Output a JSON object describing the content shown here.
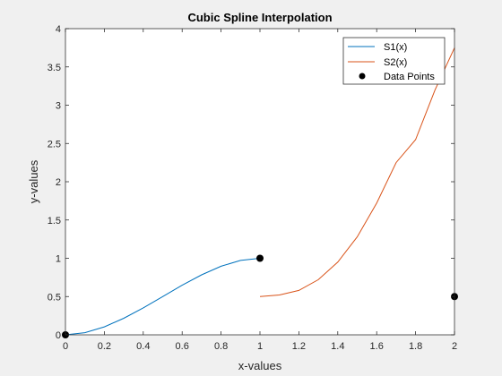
{
  "chart_data": {
    "type": "line",
    "title": "Cubic Spline Interpolation",
    "xlabel": "x-values",
    "ylabel": "y-values",
    "xlim": [
      0,
      2
    ],
    "ylim": [
      0,
      4
    ],
    "xticks": [
      0,
      0.2,
      0.4,
      0.6,
      0.8,
      1,
      1.2,
      1.4,
      1.6,
      1.8,
      2
    ],
    "xtick_labels": [
      "0",
      "0.2",
      "0.4",
      "0.6",
      "0.8",
      "1",
      "1.2",
      "1.4",
      "1.6",
      "1.8",
      "2"
    ],
    "yticks": [
      0,
      0.5,
      1,
      1.5,
      2,
      2.5,
      3,
      3.5,
      4
    ],
    "ytick_labels": [
      "0",
      "0.5",
      "1",
      "1.5",
      "2",
      "2.5",
      "3",
      "3.5",
      "4"
    ],
    "grid": false,
    "legend_position": "top-right",
    "series": [
      {
        "name": "S1(x)",
        "type": "line",
        "color": "#0072BD",
        "x": [
          0,
          0.1,
          0.2,
          0.3,
          0.4,
          0.5,
          0.6,
          0.7,
          0.8,
          0.9,
          1.0
        ],
        "y": [
          0,
          0.028,
          0.104,
          0.216,
          0.352,
          0.5,
          0.648,
          0.784,
          0.896,
          0.972,
          1.0
        ]
      },
      {
        "name": "S2(x)",
        "type": "line",
        "color": "#D95319",
        "x": [
          1.0,
          1.1,
          1.2,
          1.3,
          1.4,
          1.5,
          1.6,
          1.7,
          1.8,
          1.9,
          2.0
        ],
        "y": [
          0.5,
          0.52,
          0.58,
          0.72,
          0.95,
          1.28,
          1.72,
          2.25,
          2.55,
          3.2,
          3.75
        ]
      },
      {
        "name": "Data Points",
        "type": "scatter",
        "color": "#000000",
        "x": [
          0,
          1,
          2
        ],
        "y": [
          0,
          1,
          0.5
        ]
      }
    ]
  }
}
